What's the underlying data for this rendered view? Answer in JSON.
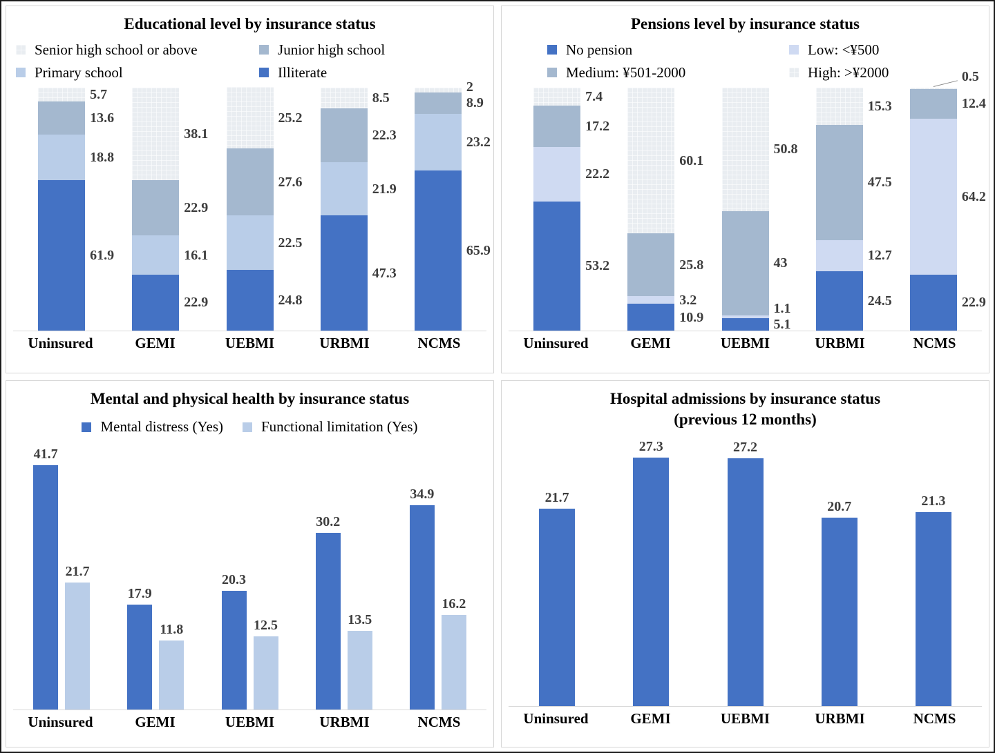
{
  "colors": {
    "blue": "#4472C4",
    "light_blue": "#B9CDE8",
    "lavender": "#CFDAF2",
    "gray_blue": "#A4B8CF",
    "pale_gray": "#E9EDF1",
    "label_text": "#3D3D3D",
    "axis_line": "#D9D9D9"
  },
  "categories": [
    "Uninsured",
    "GEMI",
    "UEBMI",
    "URBMI",
    "NCMS"
  ],
  "chart_data": [
    {
      "id": "education",
      "type": "stacked-bar",
      "title": "Educational level by insurance status",
      "categories": [
        "Uninsured",
        "GEMI",
        "UEBMI",
        "URBMI",
        "NCMS"
      ],
      "ylim": [
        0,
        100
      ],
      "grid": false,
      "legend_position": "top-two-columns",
      "legend": [
        {
          "label": "Senior high school or above",
          "color": "pale_gray"
        },
        {
          "label": "Junior high school",
          "color": "gray_blue"
        },
        {
          "label": "Primary school",
          "color": "light_blue"
        },
        {
          "label": "Illiterate",
          "color": "blue"
        }
      ],
      "series": [
        {
          "name": "Illiterate",
          "color": "blue",
          "values": [
            61.9,
            22.9,
            24.8,
            47.3,
            65.9
          ]
        },
        {
          "name": "Primary school",
          "color": "light_blue",
          "values": [
            18.8,
            16.1,
            22.5,
            21.9,
            23.2
          ]
        },
        {
          "name": "Junior high school",
          "color": "gray_blue",
          "values": [
            13.6,
            22.9,
            27.6,
            22.3,
            8.9
          ]
        },
        {
          "name": "Senior high school or above",
          "color": "pale_gray",
          "values": [
            5.7,
            38.1,
            25.2,
            8.5,
            2
          ]
        }
      ]
    },
    {
      "id": "pensions",
      "type": "stacked-bar",
      "title": "Pensions level by insurance status",
      "categories": [
        "Uninsured",
        "GEMI",
        "UEBMI",
        "URBMI",
        "NCMS"
      ],
      "ylim": [
        0,
        100
      ],
      "grid": false,
      "legend_position": "top-two-columns",
      "legend": [
        {
          "label": "No pension",
          "color": "blue"
        },
        {
          "label": "Low: <¥500",
          "color": "lavender"
        },
        {
          "label": "Medium: ¥501-2000",
          "color": "gray_blue"
        },
        {
          "label": "High: >¥2000",
          "color": "pale_gray"
        }
      ],
      "series": [
        {
          "name": "No pension",
          "color": "blue",
          "values": [
            53.2,
            10.9,
            5.1,
            24.5,
            22.9
          ]
        },
        {
          "name": "Low: <¥500",
          "color": "lavender",
          "values": [
            22.2,
            3.2,
            1.1,
            12.7,
            64.2
          ]
        },
        {
          "name": "Medium: ¥501-2000",
          "color": "gray_blue",
          "values": [
            17.2,
            25.8,
            43,
            47.5,
            12.4
          ]
        },
        {
          "name": "High: >¥2000",
          "color": "pale_gray",
          "values": [
            7.4,
            60.1,
            50.8,
            15.3,
            0.5
          ]
        }
      ]
    },
    {
      "id": "health",
      "type": "grouped-bar",
      "title": "Mental and physical health by insurance status",
      "categories": [
        "Uninsured",
        "GEMI",
        "UEBMI",
        "URBMI",
        "NCMS"
      ],
      "grid": false,
      "legend_position": "top-row",
      "legend": [
        {
          "label": "Mental distress (Yes)",
          "color": "blue"
        },
        {
          "label": "Functional limitation (Yes)",
          "color": "light_blue"
        }
      ],
      "series": [
        {
          "name": "Mental distress (Yes)",
          "color": "blue",
          "values": [
            41.7,
            17.9,
            20.3,
            30.2,
            34.9
          ]
        },
        {
          "name": "Functional limitation (Yes)",
          "color": "light_blue",
          "values": [
            21.7,
            11.8,
            12.5,
            13.5,
            16.2
          ]
        }
      ]
    },
    {
      "id": "hospital",
      "type": "bar",
      "title": "Hospital admissions by insurance status",
      "subtitle": "(previous 12 months)",
      "categories": [
        "Uninsured",
        "GEMI",
        "UEBMI",
        "URBMI",
        "NCMS"
      ],
      "grid": false,
      "series": [
        {
          "name": "Hospital admissions",
          "color": "blue",
          "values": [
            21.7,
            27.3,
            27.2,
            20.7,
            21.3
          ]
        }
      ]
    }
  ]
}
